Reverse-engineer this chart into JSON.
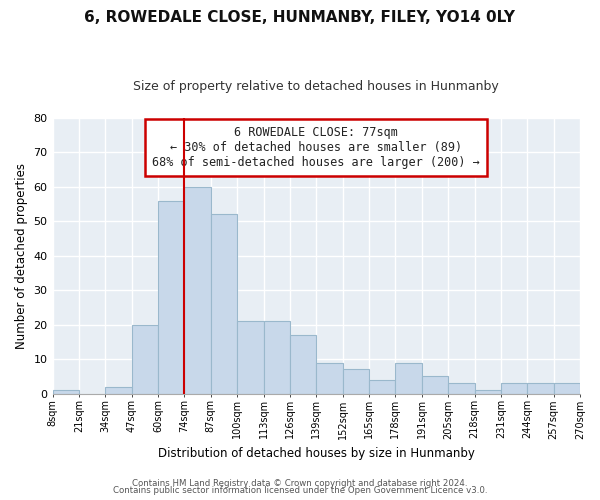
{
  "title": "6, ROWEDALE CLOSE, HUNMANBY, FILEY, YO14 0LY",
  "subtitle": "Size of property relative to detached houses in Hunmanby",
  "xlabel": "Distribution of detached houses by size in Hunmanby",
  "ylabel": "Number of detached properties",
  "bar_color": "#c8d8ea",
  "bar_edge_color": "#9ab8cc",
  "bin_labels": [
    "8sqm",
    "21sqm",
    "34sqm",
    "47sqm",
    "60sqm",
    "74sqm",
    "87sqm",
    "100sqm",
    "113sqm",
    "126sqm",
    "139sqm",
    "152sqm",
    "165sqm",
    "178sqm",
    "191sqm",
    "205sqm",
    "218sqm",
    "231sqm",
    "244sqm",
    "257sqm",
    "270sqm"
  ],
  "bar_heights": [
    1,
    0,
    2,
    20,
    56,
    60,
    52,
    21,
    21,
    17,
    9,
    7,
    4,
    9,
    5,
    3,
    1,
    3,
    3,
    3
  ],
  "vline_color": "#cc0000",
  "vline_bar_index": 5,
  "ylim": [
    0,
    80
  ],
  "yticks": [
    0,
    10,
    20,
    30,
    40,
    50,
    60,
    70,
    80
  ],
  "annotation_title": "6 ROWEDALE CLOSE: 77sqm",
  "annotation_line1": "← 30% of detached houses are smaller (89)",
  "annotation_line2": "68% of semi-detached houses are larger (200) →",
  "annotation_box_color": "#ffffff",
  "annotation_box_edge": "#cc0000",
  "footer1": "Contains HM Land Registry data © Crown copyright and database right 2024.",
  "footer2": "Contains public sector information licensed under the Open Government Licence v3.0.",
  "background_color": "#ffffff",
  "plot_background": "#e8eef4",
  "grid_color": "#ffffff",
  "title_fontsize": 11,
  "subtitle_fontsize": 9
}
